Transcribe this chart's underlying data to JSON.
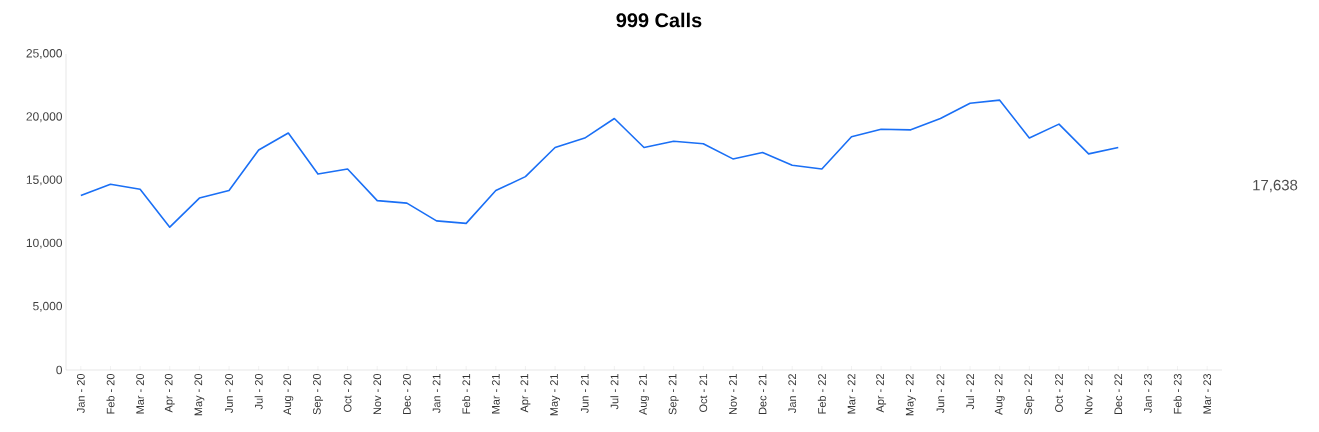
{
  "chart_data": {
    "type": "line",
    "title": "999 Calls",
    "categories": [
      "Jan - 20",
      "Feb - 20",
      "Mar - 20",
      "Apr - 20",
      "May - 20",
      "Jun - 20",
      "Jul - 20",
      "Aug - 20",
      "Sep - 20",
      "Oct - 20",
      "Nov - 20",
      "Dec - 20",
      "Jan - 21",
      "Feb - 21",
      "Mar - 21",
      "Apr - 21",
      "May - 21",
      "Jun - 21",
      "Jul - 21",
      "Aug - 21",
      "Sep - 21",
      "Oct - 21",
      "Nov - 21",
      "Dec - 21",
      "Jan - 22",
      "Feb - 22",
      "Mar - 22",
      "Apr - 22",
      "May - 22",
      "Jun - 22",
      "Jul - 22",
      "Aug - 22",
      "Sep - 22",
      "Oct - 22",
      "Nov - 22",
      "Dec - 22",
      "Jan - 23",
      "Feb - 23",
      "Mar - 23"
    ],
    "values": [
      13800,
      14700,
      14300,
      11300,
      13600,
      14200,
      17400,
      18750,
      15500,
      15900,
      13400,
      13200,
      11800,
      11600,
      14200,
      15300,
      17600,
      18350,
      19900,
      17600,
      18100,
      17900,
      16700,
      17200,
      16200,
      15900,
      18450,
      19050,
      19000,
      19900,
      21100,
      21350,
      18350,
      19450,
      17100,
      17600,
      null,
      null,
      null
    ],
    "color": "#1a6ff5",
    "ylim": [
      0,
      25000
    ],
    "yticks": [
      {
        "value": 0,
        "label": "0"
      },
      {
        "value": 5000,
        "label": "5,000"
      },
      {
        "value": 10000,
        "label": "10,000"
      },
      {
        "value": 15000,
        "label": "15,000"
      },
      {
        "value": 20000,
        "label": "20,000"
      },
      {
        "value": 25000,
        "label": "25,000"
      }
    ],
    "annotations": [
      "17,638"
    ]
  }
}
